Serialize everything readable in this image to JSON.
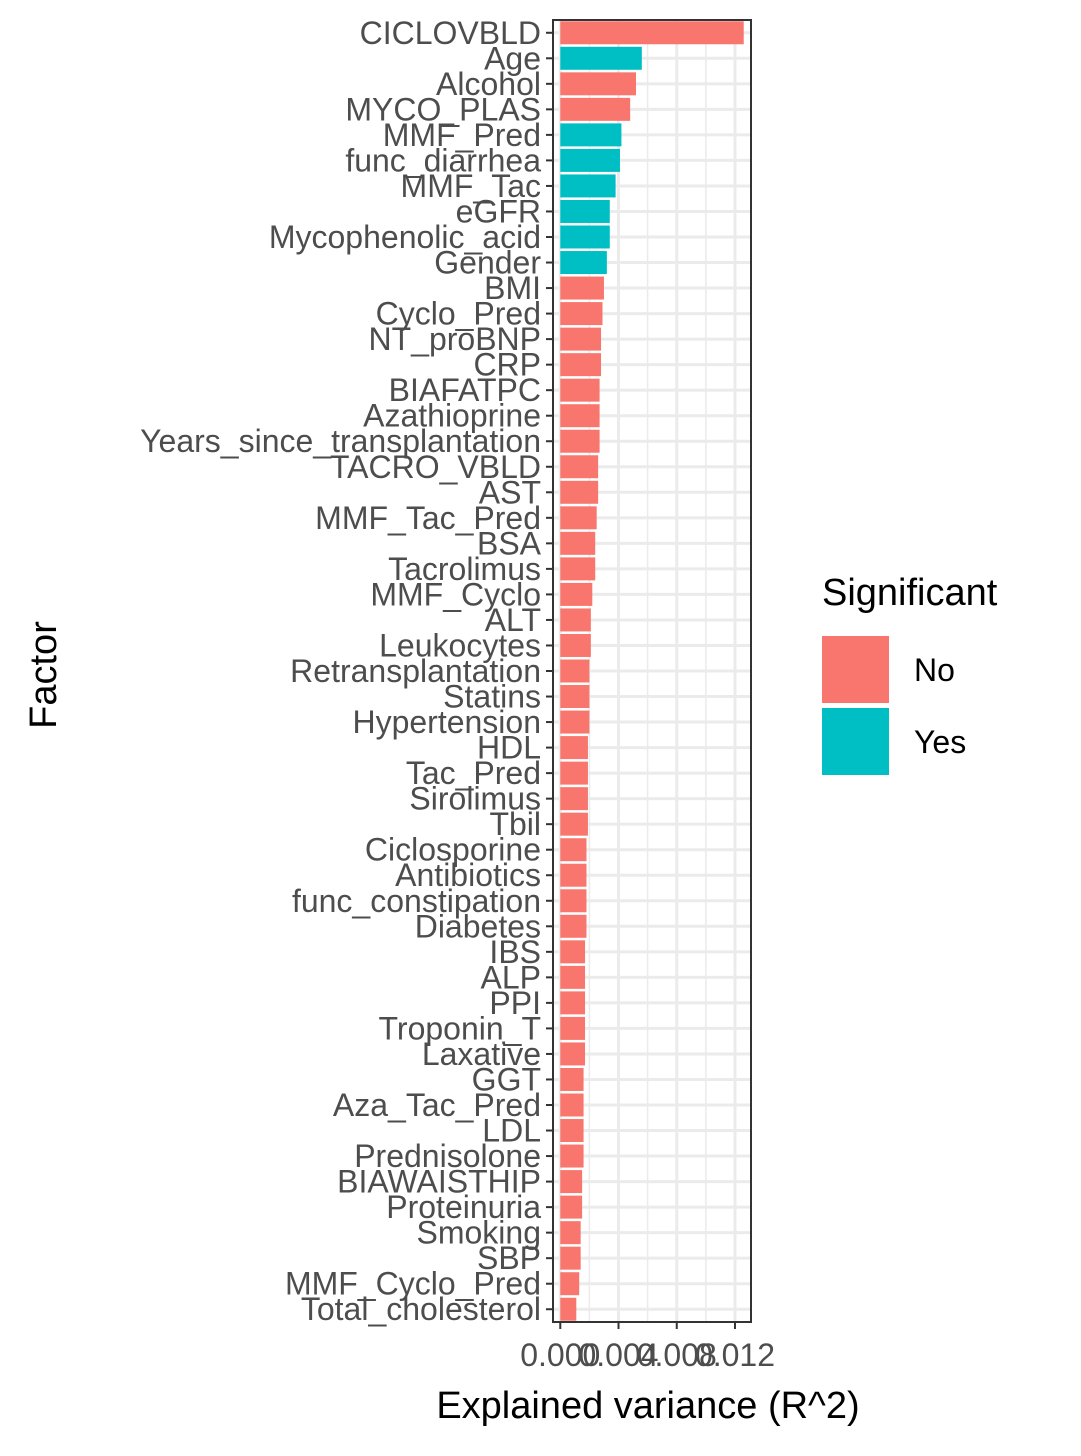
{
  "chart_data": {
    "type": "bar",
    "orientation": "horizontal",
    "xlabel": "Explained variance (R^2)",
    "ylabel": "Factor",
    "xlim": [
      -0.0005,
      0.0131
    ],
    "x_ticks": [
      "0.000",
      "0.004",
      "0.008",
      "0.012"
    ],
    "x_tick_values": [
      0.0,
      0.004,
      0.008,
      0.012
    ],
    "grid": true,
    "legend": {
      "title": "Significant",
      "position": "right",
      "entries": [
        {
          "label": "No",
          "color": "#F8766D"
        },
        {
          "label": "Yes",
          "color": "#00BFC4"
        }
      ]
    },
    "categories": [
      "CICLOVBLD",
      "Age",
      "Alcohol",
      "MYCO_PLAS",
      "MMF_Pred",
      "func_diarrhea",
      "MMF_Tac",
      "eGFR",
      "Mycophenolic_acid",
      "Gender",
      "BMI",
      "Cyclo_Pred",
      "NT_proBNP",
      "CRP",
      "BIAFATPC",
      "Azathioprine",
      "Years_since_transplantation",
      "TACRO_VBLD",
      "AST",
      "MMF_Tac_Pred",
      "BSA",
      "Tacrolimus",
      "MMF_Cyclo",
      "ALT",
      "Leukocytes",
      "Retransplantation",
      "Statins",
      "Hypertension",
      "HDL",
      "Tac_Pred",
      "Sirolimus",
      "Tbil",
      "Ciclosporine",
      "Antibiotics",
      "func_constipation",
      "Diabetes",
      "IBS",
      "ALP",
      "PPI",
      "Troponin_T",
      "Laxative",
      "GGT",
      "Aza_Tac_Pred",
      "LDL",
      "Prednisolone",
      "BIAWAISTHIP",
      "Proteinuria",
      "Smoking",
      "SBP",
      "MMF_Cyclo_Pred",
      "Total_cholesterol"
    ],
    "values": [
      0.0126,
      0.0056,
      0.0052,
      0.0048,
      0.0042,
      0.0041,
      0.0038,
      0.0034,
      0.0034,
      0.0032,
      0.003,
      0.0029,
      0.0028,
      0.0028,
      0.0027,
      0.0027,
      0.0027,
      0.0026,
      0.0026,
      0.0025,
      0.0024,
      0.0024,
      0.0022,
      0.0021,
      0.0021,
      0.002,
      0.002,
      0.002,
      0.0019,
      0.0019,
      0.0019,
      0.0019,
      0.0018,
      0.0018,
      0.0018,
      0.0018,
      0.0017,
      0.0017,
      0.0017,
      0.0017,
      0.0017,
      0.0016,
      0.0016,
      0.0016,
      0.0016,
      0.0015,
      0.0015,
      0.0014,
      0.0014,
      0.0013,
      0.0011
    ],
    "significant": [
      "No",
      "Yes",
      "No",
      "No",
      "Yes",
      "Yes",
      "Yes",
      "Yes",
      "Yes",
      "Yes",
      "No",
      "No",
      "No",
      "No",
      "No",
      "No",
      "No",
      "No",
      "No",
      "No",
      "No",
      "No",
      "No",
      "No",
      "No",
      "No",
      "No",
      "No",
      "No",
      "No",
      "No",
      "No",
      "No",
      "No",
      "No",
      "No",
      "No",
      "No",
      "No",
      "No",
      "No",
      "No",
      "No",
      "No",
      "No",
      "No",
      "No",
      "No",
      "No",
      "No",
      "No"
    ]
  }
}
